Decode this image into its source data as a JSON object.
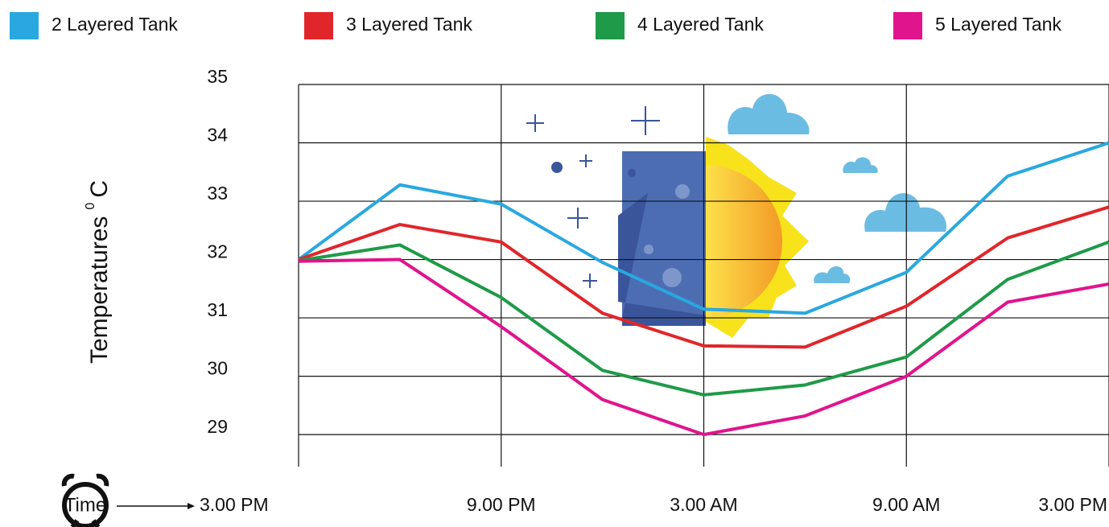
{
  "chart_data": {
    "type": "line",
    "y_label": "Temperatures",
    "y_label_sup": "0",
    "y_label_unit": "C",
    "x_label": "Time",
    "x": [
      0,
      3,
      6,
      9,
      12,
      15,
      18,
      21,
      24
    ],
    "xlim": [
      0,
      24
    ],
    "xticks": [
      {
        "value": 0,
        "label": "3.00 PM"
      },
      {
        "value": 6,
        "label": "9.00 PM"
      },
      {
        "value": 12,
        "label": "3.00 AM"
      },
      {
        "value": 18,
        "label": "9.00 AM"
      },
      {
        "value": 24,
        "label": "3.00 PM"
      }
    ],
    "ylim": [
      28.45,
      35
    ],
    "yticks": [
      29,
      30,
      31,
      32,
      33,
      34,
      35
    ],
    "grid": true,
    "legend": "top",
    "series": [
      {
        "name": "2 Layered Tank",
        "color": "#29a8e0",
        "values": [
          32.0,
          33.28,
          32.95,
          31.95,
          31.15,
          31.08,
          31.78,
          33.43,
          34.0
        ]
      },
      {
        "name": "3 Layered Tank",
        "color": "#e0262b",
        "values": [
          32.0,
          32.6,
          32.3,
          31.08,
          30.52,
          30.5,
          31.2,
          32.37,
          32.9
        ]
      },
      {
        "name": "4 Layered Tank",
        "color": "#1f9a48",
        "values": [
          31.98,
          32.25,
          31.35,
          30.1,
          29.68,
          29.85,
          30.33,
          31.66,
          32.3
        ]
      },
      {
        "name": "5 Layered Tank",
        "color": "#e0148c",
        "values": [
          31.97,
          32.0,
          30.85,
          29.6,
          29.0,
          29.32,
          30.0,
          31.27,
          31.58
        ]
      }
    ]
  }
}
